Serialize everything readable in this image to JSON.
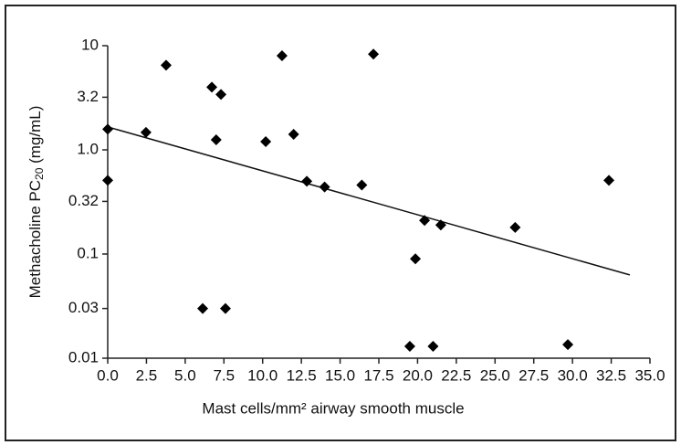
{
  "chart_data": {
    "type": "scatter",
    "xlabel": "Mast cells/mm² airway smooth muscle",
    "ylabel": {
      "main": "Methacholine PC",
      "sub": "20",
      "rest": " (mg/mL)"
    },
    "ylog": true,
    "color": "#000000",
    "x": [
      0,
      0,
      2.47,
      3.77,
      6.13,
      6.72,
      7.31,
      7.0,
      7.6,
      10.2,
      11.25,
      12.0,
      12.85,
      14.0,
      16.4,
      17.15,
      19.5,
      19.86,
      20.45,
      21.0,
      21.5,
      26.3,
      29.7,
      32.35
    ],
    "values": [
      0.51,
      1.58,
      1.47,
      6.5,
      0.03,
      4.0,
      3.4,
      1.25,
      0.03,
      1.2,
      8.0,
      1.41,
      0.5,
      0.44,
      0.46,
      8.3,
      0.013,
      0.09,
      0.21,
      0.013,
      0.19,
      0.18,
      0.0135,
      0.51
    ],
    "trendline": {
      "x": [
        0,
        33.7
      ],
      "values": [
        1.66,
        0.063
      ]
    },
    "xlim": [
      0,
      35
    ],
    "ylim": [
      0.01,
      10
    ],
    "xticks": [
      {
        "value": 0,
        "label": "0.0"
      },
      2.5,
      {
        "value": 5,
        "label": "5.0"
      },
      7.5,
      {
        "value": 10,
        "label": "10.0"
      },
      12.5,
      {
        "value": 15,
        "label": "15.0"
      },
      17.5,
      {
        "value": 20,
        "label": "20.0"
      },
      22.5,
      {
        "value": 25,
        "label": "25.0"
      },
      27.5,
      {
        "value": 30,
        "label": "30.0"
      },
      32.5,
      {
        "value": 35,
        "label": "35.0"
      }
    ],
    "yticks": [
      10,
      3.2,
      {
        "value": 1,
        "label": "1.0"
      },
      0.32,
      0.1,
      0.03,
      0.01
    ]
  }
}
